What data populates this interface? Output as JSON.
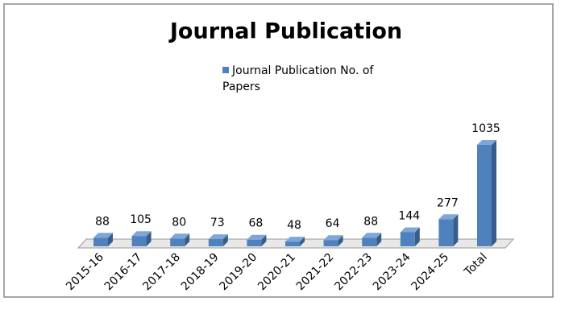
{
  "chart_data": {
    "type": "bar3d",
    "title": "Journal Publication",
    "categories": [
      "2015-16",
      "2016-17",
      "2017-18",
      "2018-19",
      "2019-20",
      "2020-21",
      "2021-22",
      "2022-23",
      "2023-24",
      "2024-25",
      "Total"
    ],
    "series": [
      {
        "name": "Journal Publication No. of Papers",
        "color": "#4f81bd",
        "values": [
          88,
          105,
          80,
          73,
          68,
          48,
          64,
          88,
          144,
          277,
          1035
        ]
      }
    ]
  }
}
